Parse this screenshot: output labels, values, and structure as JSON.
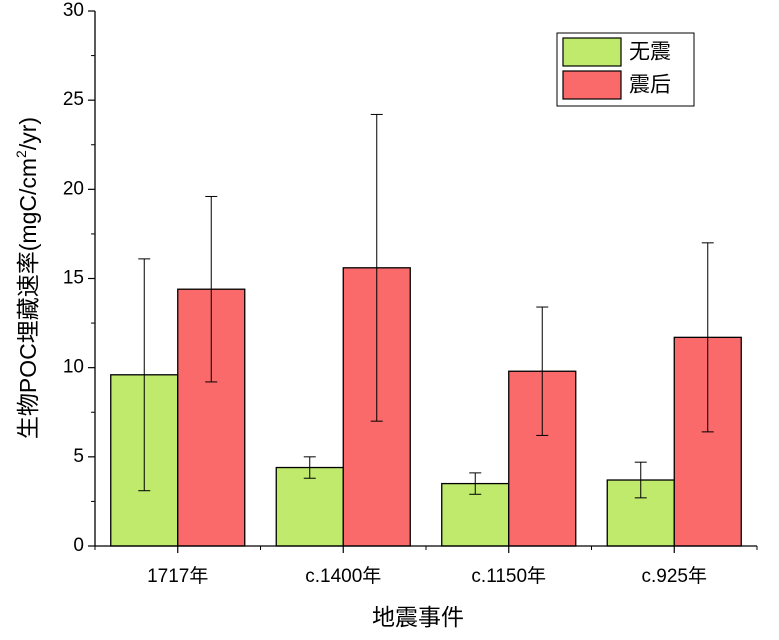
{
  "chart_data": {
    "type": "bar",
    "title": "",
    "xlabel": "地震事件",
    "ylabel": "生物POC埋藏速率(mgC/cm²/yr)",
    "ylabel_prefix": "生物POC埋藏速率(mgC/cm",
    "ylabel_sup": "2",
    "ylabel_suffix": "/yr)",
    "ylim": [
      0,
      30
    ],
    "yticks": [
      "0",
      "5",
      "10",
      "15",
      "20",
      "25",
      "30"
    ],
    "categories": [
      "1717年",
      "c.1400年",
      "c.1150年",
      "c.925年"
    ],
    "series": [
      {
        "name": "无震",
        "color": "#bfea6c",
        "values": [
          9.6,
          4.4,
          3.5,
          3.7
        ],
        "err_low": [
          3.1,
          3.8,
          2.9,
          2.7
        ],
        "err_high": [
          16.1,
          5.0,
          4.1,
          4.7
        ]
      },
      {
        "name": "震后",
        "color": "#fa6a6a",
        "values": [
          14.4,
          15.6,
          9.8,
          11.7
        ],
        "err_low": [
          9.2,
          7.0,
          6.2,
          6.4
        ],
        "err_high": [
          19.6,
          24.2,
          13.4,
          17.0
        ]
      }
    ],
    "legend_position": "top-right",
    "grid": false
  }
}
